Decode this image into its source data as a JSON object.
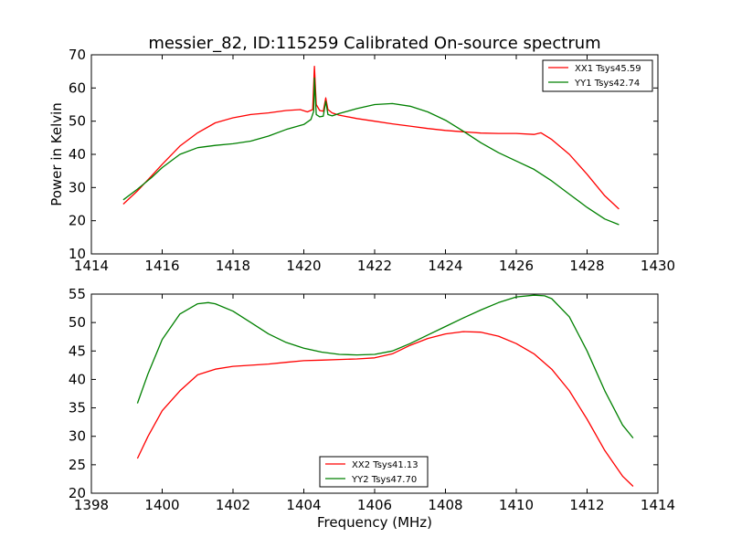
{
  "chart_data": [
    {
      "type": "line",
      "title": "messier_82, ID:115259 Calibrated On-source spectrum",
      "xlabel": "",
      "ylabel": "Power in Kelvin",
      "xlim": [
        1414,
        1430
      ],
      "ylim": [
        10,
        70
      ],
      "xticks": [
        1414,
        1416,
        1418,
        1420,
        1422,
        1424,
        1426,
        1428,
        1430
      ],
      "yticks": [
        10,
        20,
        30,
        40,
        50,
        60,
        70
      ],
      "grid": false,
      "legend_position": "top-right",
      "series": [
        {
          "name": "XX1 Tsys45.59",
          "color": "#ff0000",
          "x": [
            1414.9,
            1415.3,
            1415.7,
            1416.0,
            1416.5,
            1417.0,
            1417.5,
            1418.0,
            1418.5,
            1419.0,
            1419.5,
            1419.9,
            1420.1,
            1420.25,
            1420.3,
            1420.35,
            1420.45,
            1420.55,
            1420.62,
            1420.68,
            1420.8,
            1421.0,
            1421.5,
            1422.0,
            1422.5,
            1423.0,
            1423.5,
            1424.0,
            1424.5,
            1425.0,
            1425.5,
            1426.0,
            1426.5,
            1426.7,
            1427.0,
            1427.5,
            1428.0,
            1428.5,
            1428.9
          ],
          "y": [
            25,
            29,
            33.5,
            37,
            42.5,
            46.5,
            49.5,
            51,
            52,
            52.5,
            53.2,
            53.5,
            52.8,
            53.5,
            66.5,
            55,
            53.2,
            53,
            57,
            53.5,
            52.5,
            51.8,
            50.8,
            50,
            49.2,
            48.5,
            47.8,
            47.2,
            46.8,
            46.4,
            46.3,
            46.3,
            46,
            46.5,
            44.5,
            40,
            34,
            27.5,
            23.5
          ]
        },
        {
          "name": "YY1 Tsys42.74",
          "color": "#008000",
          "x": [
            1414.9,
            1415.3,
            1415.7,
            1416.0,
            1416.5,
            1417.0,
            1417.5,
            1418.0,
            1418.5,
            1419.0,
            1419.5,
            1420.0,
            1420.2,
            1420.28,
            1420.3,
            1420.35,
            1420.45,
            1420.55,
            1420.62,
            1420.68,
            1420.8,
            1421.0,
            1421.5,
            1422.0,
            1422.5,
            1423.0,
            1423.5,
            1424.0,
            1424.5,
            1425.0,
            1425.5,
            1426.0,
            1426.5,
            1427.0,
            1427.5,
            1428.0,
            1428.5,
            1428.9
          ],
          "y": [
            26.3,
            29.5,
            33,
            36,
            40,
            42,
            42.7,
            43.2,
            44,
            45.5,
            47.5,
            49,
            50.5,
            53,
            63,
            52,
            51.3,
            51.5,
            56,
            52,
            51.6,
            52.3,
            53.8,
            55,
            55.3,
            54.5,
            52.8,
            50.3,
            47,
            43.5,
            40.5,
            38,
            35.5,
            32,
            28,
            24,
            20.5,
            18.8
          ]
        }
      ]
    },
    {
      "type": "line",
      "title": "",
      "xlabel": "Frequency (MHz)",
      "ylabel": "",
      "xlim": [
        1398,
        1414
      ],
      "ylim": [
        20,
        55
      ],
      "xticks": [
        1398,
        1400,
        1402,
        1404,
        1406,
        1408,
        1410,
        1412,
        1414
      ],
      "yticks": [
        20,
        25,
        30,
        35,
        40,
        45,
        50,
        55
      ],
      "grid": false,
      "legend_position": "bottom-center",
      "series": [
        {
          "name": "XX2 Tsys41.13",
          "color": "#ff0000",
          "x": [
            1399.3,
            1399.6,
            1400.0,
            1400.5,
            1401.0,
            1401.5,
            1402.0,
            1402.5,
            1403.0,
            1403.5,
            1404.0,
            1404.5,
            1405.0,
            1405.5,
            1406.0,
            1406.5,
            1407.0,
            1407.5,
            1408.0,
            1408.5,
            1409.0,
            1409.5,
            1410.0,
            1410.5,
            1411.0,
            1411.5,
            1412.0,
            1412.5,
            1413.0,
            1413.3
          ],
          "y": [
            26.1,
            30,
            34.5,
            38,
            40.8,
            41.8,
            42.3,
            42.5,
            42.7,
            43,
            43.3,
            43.4,
            43.5,
            43.6,
            43.8,
            44.5,
            46,
            47.2,
            48,
            48.4,
            48.3,
            47.6,
            46.3,
            44.5,
            41.8,
            38,
            33,
            27.5,
            23,
            21.2
          ]
        },
        {
          "name": "YY2 Tsys47.70",
          "color": "#008000",
          "x": [
            1399.3,
            1399.6,
            1400.0,
            1400.5,
            1401.0,
            1401.3,
            1401.5,
            1402.0,
            1402.5,
            1403.0,
            1403.5,
            1404.0,
            1404.5,
            1405.0,
            1405.5,
            1406.0,
            1406.5,
            1407.0,
            1407.5,
            1408.0,
            1408.5,
            1409.0,
            1409.5,
            1410.0,
            1410.5,
            1410.8,
            1411.0,
            1411.5,
            1412.0,
            1412.5,
            1413.0,
            1413.3
          ],
          "y": [
            35.8,
            41,
            47,
            51.5,
            53.3,
            53.5,
            53.3,
            52,
            50,
            48,
            46.5,
            45.5,
            44.8,
            44.4,
            44.3,
            44.4,
            45,
            46.3,
            47.8,
            49.3,
            50.8,
            52.2,
            53.5,
            54.5,
            54.8,
            54.7,
            54.2,
            51,
            45,
            38,
            32,
            29.7
          ]
        }
      ]
    }
  ]
}
